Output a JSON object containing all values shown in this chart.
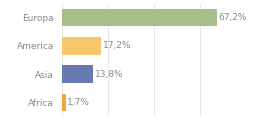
{
  "categories": [
    "Europa",
    "America",
    "Asia",
    "Africa"
  ],
  "values": [
    67.2,
    17.2,
    13.8,
    1.7
  ],
  "bar_colors": [
    "#a8be88",
    "#f5c96a",
    "#6878b0",
    "#f5a83a"
  ],
  "labels": [
    "67,2%",
    "17,2%",
    "13,8%",
    "1,7%"
  ],
  "background_color": "#ffffff",
  "grid_color": "#dddddd",
  "text_color": "#888888",
  "xlim": [
    0,
    80
  ],
  "bar_height": 0.62,
  "label_fontsize": 6.5,
  "tick_fontsize": 6.5
}
